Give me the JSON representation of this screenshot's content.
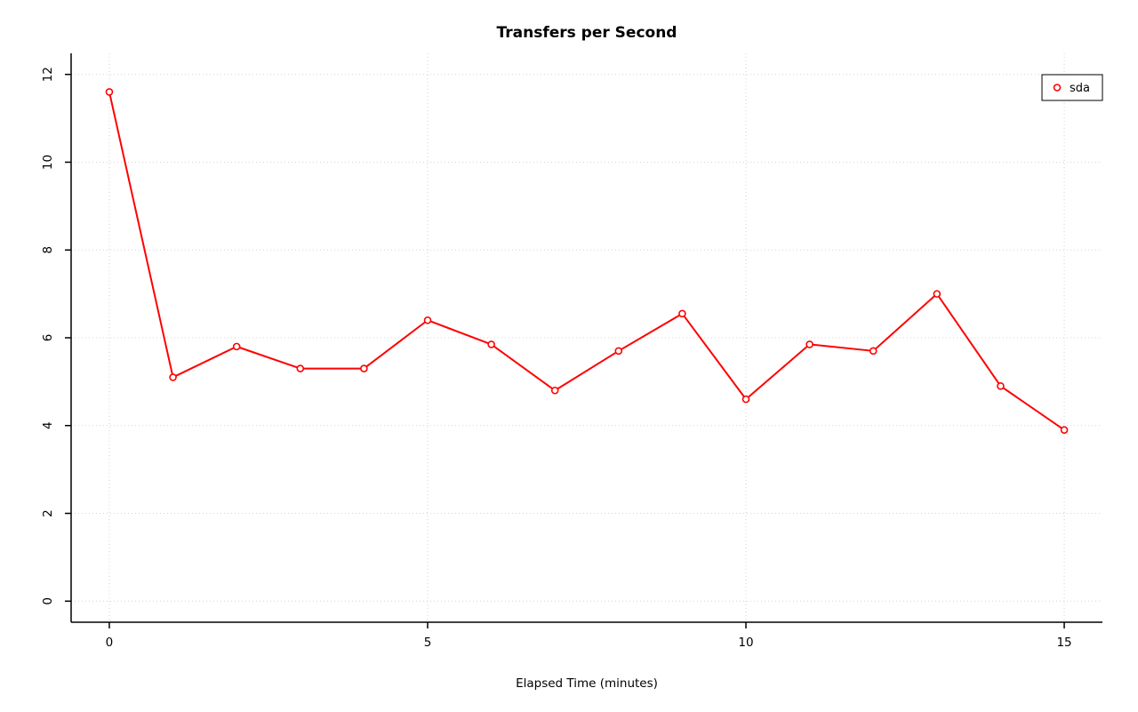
{
  "chart_data": {
    "type": "line",
    "title": "Transfers per Second",
    "xlabel": "Elapsed Time (minutes)",
    "ylabel": "",
    "x": [
      0,
      1,
      2,
      3,
      4,
      5,
      6,
      7,
      8,
      9,
      10,
      11,
      12,
      13,
      14,
      15
    ],
    "series": [
      {
        "name": "sda",
        "color": "#ff0000",
        "values": [
          11.6,
          5.1,
          5.8,
          5.3,
          5.3,
          6.4,
          5.85,
          4.8,
          5.7,
          6.55,
          4.6,
          5.85,
          5.7,
          7.0,
          4.9,
          3.9
        ]
      }
    ],
    "xlim": [
      0,
      15
    ],
    "ylim": [
      0,
      12
    ],
    "xticks": [
      0,
      5,
      10,
      15
    ],
    "yticks": [
      0,
      2,
      4,
      6,
      8,
      10,
      12
    ],
    "grid": true,
    "grid_style": "dotted",
    "grid_color": "#d4d4d4",
    "axis_color": "#000000",
    "background": "#ffffff",
    "marker": "open-circle",
    "legend_position": "top-right"
  }
}
